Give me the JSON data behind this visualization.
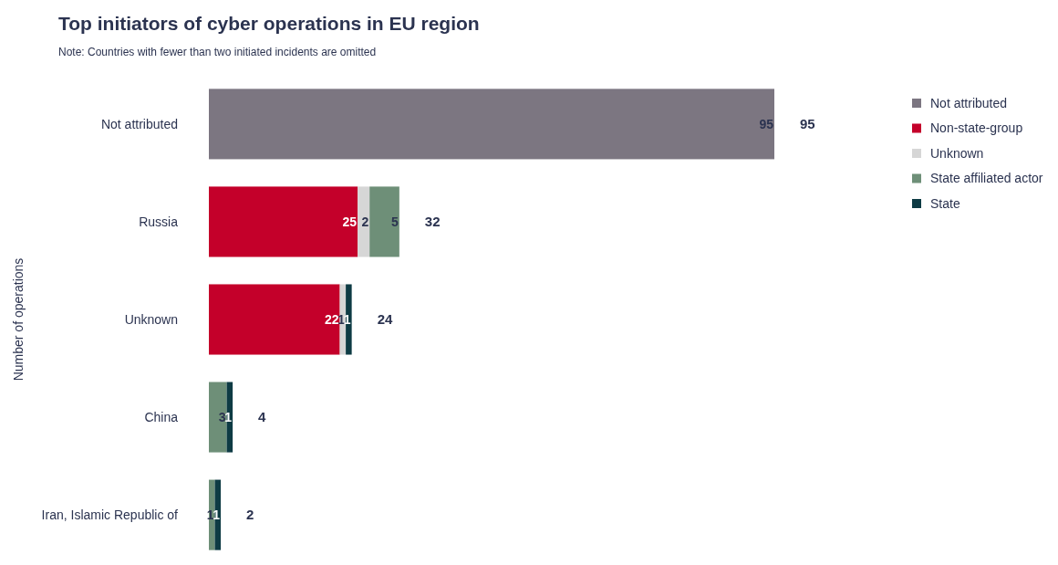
{
  "chart_data": {
    "type": "bar",
    "orientation": "horizontal",
    "stacked": true,
    "title": "Top initiators of cyber operations in EU region",
    "subtitle": "Note: Countries with fewer than two initiated incidents are omitted",
    "ylabel": "Number of operations",
    "categories": [
      "Not attributed",
      "Russia",
      "Unknown",
      "China",
      "Iran, Islamic Republic of"
    ],
    "series": [
      {
        "name": "Not attributed",
        "color": "#7c7681",
        "values": [
          95,
          null,
          null,
          null,
          null
        ]
      },
      {
        "name": "Non-state-group",
        "color": "#c4002a",
        "values": [
          null,
          25,
          22,
          null,
          null
        ]
      },
      {
        "name": "Unknown",
        "color": "#d6d6d6",
        "values": [
          null,
          2,
          1,
          null,
          null
        ]
      },
      {
        "name": "State affiliated actor",
        "color": "#6e8f78",
        "values": [
          null,
          5,
          null,
          3,
          1
        ]
      },
      {
        "name": "State",
        "color": "#0e3b44",
        "values": [
          null,
          null,
          1,
          1,
          1
        ]
      }
    ],
    "data_labels": true,
    "totals": [
      "95",
      "32",
      "24",
      "4",
      "2"
    ],
    "legend": "top right"
  }
}
